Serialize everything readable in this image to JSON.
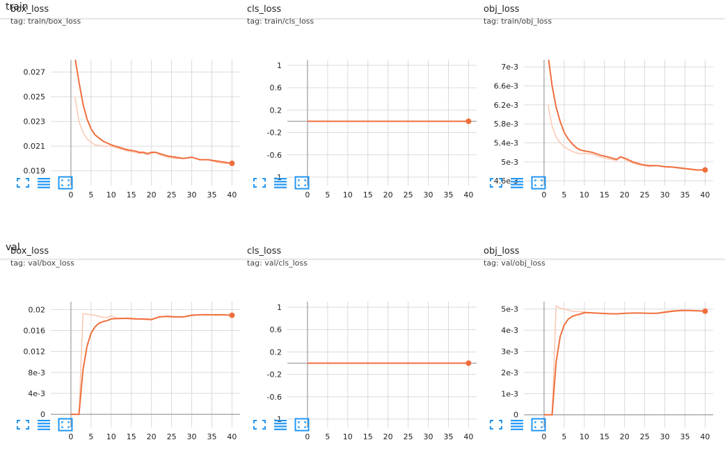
{
  "sections": [
    {
      "label": "train"
    },
    {
      "label": "val"
    }
  ],
  "colors": {
    "line": "#f06e3c",
    "raw": "#f9c7b2",
    "grid": "#dadada",
    "axis": "#9e9e9e",
    "icon": "#2196f3"
  },
  "icons": [
    "fit-domain-icon",
    "data-table-icon",
    "expand-chart-icon"
  ],
  "chart_data": [
    {
      "title": "box_loss",
      "tag": "tag: train/box_loss",
      "type": "line",
      "xlim": [
        -5,
        42
      ],
      "ylim": [
        0.0178,
        0.028
      ],
      "xticks": [
        0,
        5,
        10,
        15,
        20,
        25,
        30,
        35,
        40
      ],
      "yticks": [
        0.019,
        0.021,
        0.023,
        0.025,
        0.027
      ],
      "ytick_labels": [
        "0.019",
        "0.021",
        "0.023",
        "0.025",
        "0.027"
      ],
      "x": [
        1,
        2,
        3,
        4,
        5,
        6,
        8,
        10,
        11,
        12,
        14,
        16,
        17,
        18,
        19,
        20,
        21,
        22,
        24,
        26,
        28,
        30,
        32,
        34,
        36,
        38,
        40
      ],
      "smoothed": [
        0.0282,
        0.0262,
        0.0244,
        0.0232,
        0.0224,
        0.0219,
        0.0214,
        0.0211,
        0.021,
        0.0209,
        0.0207,
        0.0206,
        0.0205,
        0.0205,
        0.0204,
        0.0205,
        0.0205,
        0.0204,
        0.0202,
        0.0201,
        0.02,
        0.0201,
        0.0199,
        0.0199,
        0.0198,
        0.0197,
        0.0196
      ],
      "raw": [
        0.025,
        0.023,
        0.0221,
        0.0216,
        0.0213,
        0.0211,
        0.021,
        0.021,
        0.0209,
        0.0208,
        0.0206,
        0.0205,
        0.0204,
        0.0204,
        0.0203,
        0.0204,
        0.0205,
        0.0203,
        0.0201,
        0.02,
        0.02,
        0.0201,
        0.0199,
        0.0199,
        0.0197,
        0.0196,
        0.0196
      ]
    },
    {
      "title": "cls_loss",
      "tag": "tag: train/cls_loss",
      "type": "line",
      "xlim": [
        -5,
        42
      ],
      "ylim": [
        -1.15,
        1.1
      ],
      "xticks": [
        0,
        5,
        10,
        15,
        20,
        25,
        30,
        35,
        40
      ],
      "yticks": [
        1,
        0.6,
        0.2,
        -0.2,
        -0.6,
        -1
      ],
      "ytick_labels": [
        "1",
        "0.6",
        "0.2",
        "-0.2",
        "-0.6",
        "-1"
      ],
      "x": [
        0,
        40
      ],
      "smoothed": [
        0,
        0
      ],
      "raw": [
        0,
        0
      ]
    },
    {
      "title": "obj_loss",
      "tag": "tag: train/obj_loss",
      "type": "line",
      "xlim": [
        -5,
        42
      ],
      "ylim": [
        0.0045,
        0.00715
      ],
      "xticks": [
        0,
        5,
        10,
        15,
        20,
        25,
        30,
        35,
        40
      ],
      "yticks": [
        0.0046,
        0.005,
        0.0054,
        0.0058,
        0.0062,
        0.0066,
        0.007
      ],
      "ytick_labels": [
        "4.6e-3",
        "5e-3",
        "5.4e-3",
        "5.8e-3",
        "6.2e-3",
        "6.6e-3",
        "7e-3"
      ],
      "x": [
        1,
        2,
        3,
        4,
        5,
        6,
        7,
        8,
        9,
        10,
        12,
        14,
        16,
        18,
        19,
        20,
        22,
        24,
        26,
        28,
        30,
        32,
        34,
        36,
        38,
        40
      ],
      "smoothed": [
        0.00725,
        0.0066,
        0.00615,
        0.00585,
        0.00562,
        0.00548,
        0.00538,
        0.0053,
        0.00525,
        0.00523,
        0.0052,
        0.00514,
        0.0051,
        0.00505,
        0.0051,
        0.00508,
        0.005,
        0.00495,
        0.00492,
        0.00492,
        0.0049,
        0.00489,
        0.00487,
        0.00485,
        0.00483,
        0.00483
      ],
      "raw": [
        0.0062,
        0.00575,
        0.00552,
        0.0054,
        0.00532,
        0.00526,
        0.00522,
        0.00519,
        0.00517,
        0.00518,
        0.00516,
        0.0051,
        0.00506,
        0.00503,
        0.00512,
        0.00505,
        0.00497,
        0.00493,
        0.0049,
        0.00492,
        0.00489,
        0.00488,
        0.00486,
        0.00484,
        0.00482,
        0.00483
      ]
    },
    {
      "title": "box_loss",
      "tag": "tag: val/box_loss",
      "type": "line",
      "xlim": [
        -5,
        42
      ],
      "ylim": [
        -0.0025,
        0.0215
      ],
      "xticks": [
        0,
        5,
        10,
        15,
        20,
        25,
        30,
        35,
        40
      ],
      "yticks": [
        0,
        0.004,
        0.008,
        0.012,
        0.016,
        0.02
      ],
      "ytick_labels": [
        "0",
        "4e-3",
        "8e-3",
        "0.012",
        "0.016",
        "0.02"
      ],
      "x": [
        0,
        2,
        3,
        4,
        5,
        6,
        7,
        8,
        9,
        10,
        12,
        14,
        16,
        18,
        20,
        22,
        24,
        26,
        28,
        30,
        32,
        34,
        36,
        38,
        40
      ],
      "smoothed": [
        0,
        0,
        0.0085,
        0.013,
        0.0155,
        0.0167,
        0.0174,
        0.0177,
        0.0179,
        0.0182,
        0.0183,
        0.0183,
        0.0182,
        0.0182,
        0.0181,
        0.0186,
        0.0187,
        0.0186,
        0.0186,
        0.0189,
        0.019,
        0.019,
        0.019,
        0.019,
        0.0189
      ],
      "raw": [
        0,
        0,
        0.0192,
        0.0191,
        0.019,
        0.0189,
        0.0187,
        0.0185,
        0.0185,
        0.0188,
        0.0182,
        0.0184,
        0.0183,
        0.0181,
        0.018,
        0.0187,
        0.0186,
        0.0185,
        0.0186,
        0.019,
        0.019,
        0.0191,
        0.0189,
        0.019,
        0.0189
      ]
    },
    {
      "title": "cls_loss",
      "tag": "tag: val/cls_loss",
      "type": "line",
      "xlim": [
        -5,
        42
      ],
      "ylim": [
        -1.15,
        1.1
      ],
      "xticks": [
        0,
        5,
        10,
        15,
        20,
        25,
        30,
        35,
        40
      ],
      "yticks": [
        1,
        0.6,
        0.2,
        -0.2,
        -0.6,
        -1
      ],
      "ytick_labels": [
        "1",
        "0.6",
        "0.2",
        "-0.2",
        "-0.6",
        "-1"
      ],
      "x": [
        0,
        40
      ],
      "smoothed": [
        0,
        0
      ],
      "raw": [
        0,
        0
      ]
    },
    {
      "title": "obj_loss",
      "tag": "tag: val/obj_loss",
      "type": "line",
      "xlim": [
        -5,
        42
      ],
      "ylim": [
        -0.0006,
        0.00535
      ],
      "xticks": [
        0,
        5,
        10,
        15,
        20,
        25,
        30,
        35,
        40
      ],
      "yticks": [
        0,
        0.001,
        0.002,
        0.003,
        0.004,
        0.005
      ],
      "ytick_labels": [
        "0",
        "1e-3",
        "2e-3",
        "3e-3",
        "4e-3",
        "5e-3"
      ],
      "x": [
        0,
        2,
        3,
        4,
        5,
        6,
        7,
        8,
        9,
        10,
        12,
        14,
        16,
        18,
        20,
        22,
        24,
        26,
        28,
        30,
        32,
        34,
        36,
        38,
        40
      ],
      "smoothed": [
        0,
        0,
        0.0025,
        0.0037,
        0.00425,
        0.00452,
        0.00465,
        0.00472,
        0.00476,
        0.00483,
        0.00482,
        0.0048,
        0.00478,
        0.00477,
        0.0048,
        0.00481,
        0.00481,
        0.0048,
        0.0048,
        0.00485,
        0.0049,
        0.00493,
        0.00493,
        0.00492,
        0.0049
      ],
      "raw": [
        0,
        0,
        0.00515,
        0.00505,
        0.005,
        0.00495,
        0.0049,
        0.00488,
        0.00487,
        0.00486,
        0.00482,
        0.0048,
        0.00478,
        0.00477,
        0.0048,
        0.00481,
        0.00481,
        0.0048,
        0.0048,
        0.00488,
        0.00493,
        0.00495,
        0.00494,
        0.00492,
        0.0049
      ]
    }
  ]
}
